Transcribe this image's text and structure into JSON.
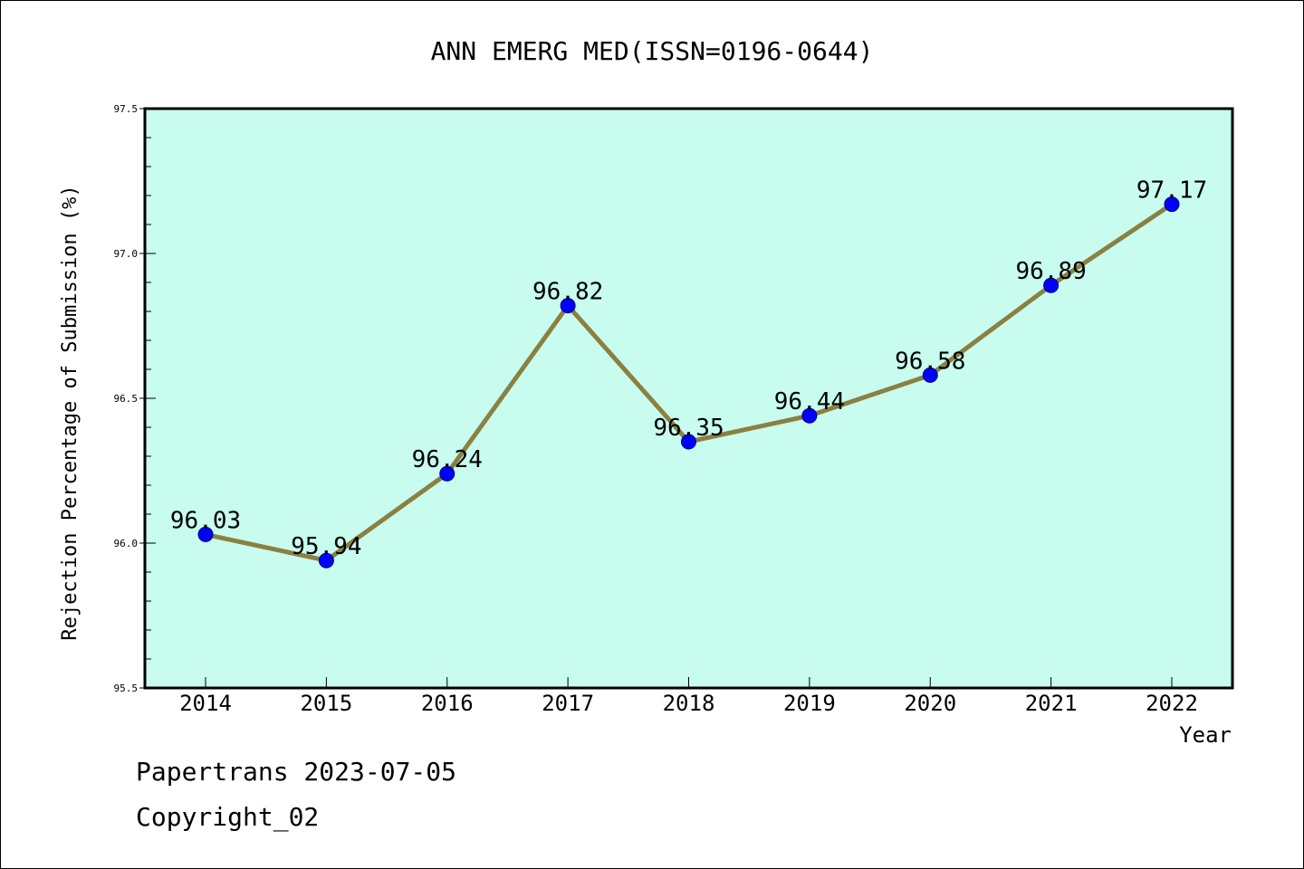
{
  "chart_data": {
    "type": "line",
    "title": "ANN EMERG MED(ISSN=0196-0644)",
    "xlabel": "Year",
    "ylabel": "Rejection Percentage of Submission (%)",
    "categories": [
      "2014",
      "2015",
      "2016",
      "2017",
      "2018",
      "2019",
      "2020",
      "2021",
      "2022"
    ],
    "values": [
      96.03,
      95.94,
      96.24,
      96.82,
      96.35,
      96.44,
      96.58,
      96.89,
      97.17
    ],
    "data_labels": [
      "96.03",
      "95.94",
      "96.24",
      "96.82",
      "96.35",
      "96.44",
      "96.58",
      "96.89",
      "97.17"
    ],
    "ylim": [
      95.5,
      97.5
    ],
    "yticks": [
      95.5,
      96.0,
      96.5,
      97.0,
      97.5
    ],
    "ytick_labels": [
      "95.5",
      "96.0",
      "96.5",
      "97.0",
      "97.5"
    ],
    "grid": false,
    "legend": "none",
    "colors": {
      "plot_background": "#c8fcee",
      "line": "#8b8040",
      "marker": "#0000ff",
      "marker_edge": "#00008b"
    }
  },
  "footer": {
    "source": "Papertrans 2023-07-05",
    "copyright": "Copyright_02"
  }
}
